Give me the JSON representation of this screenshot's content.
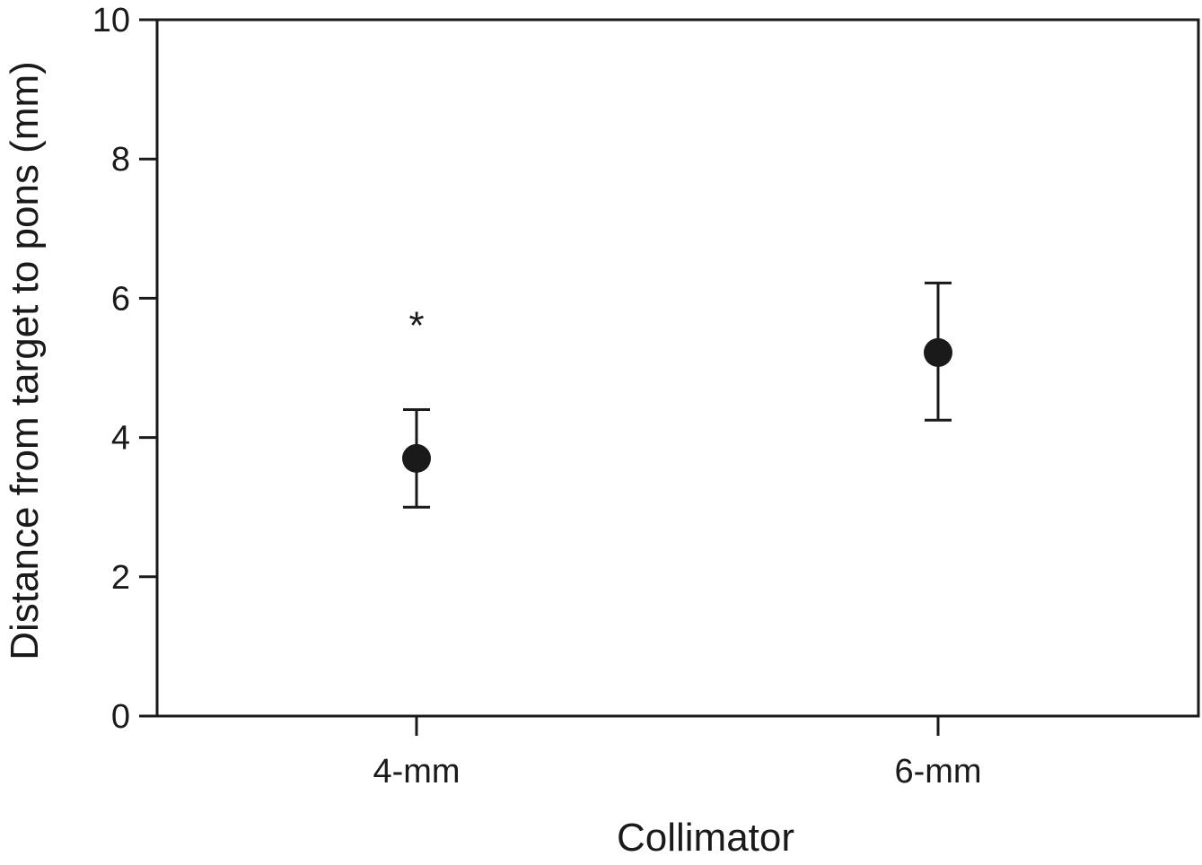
{
  "chart_data": {
    "type": "scatter",
    "title": "",
    "xlabel": "Collimator",
    "ylabel": "Distance from target to pons (mm)",
    "categories": [
      "4-mm",
      "6-mm"
    ],
    "series": [
      {
        "values": [
          3.7,
          5.22
        ],
        "error_low": [
          3.0,
          4.25
        ],
        "error_high": [
          4.4,
          6.22
        ]
      }
    ],
    "ylim": [
      0,
      10
    ],
    "yticks": [
      0,
      2,
      4,
      6,
      8,
      10
    ],
    "grid": false,
    "legend": "none",
    "annotations": [
      {
        "text": "*",
        "category": "4-mm",
        "y": 5.7
      }
    ],
    "colors": {
      "marker": "#1a1a1a",
      "axis": "#1a1a1a"
    }
  }
}
